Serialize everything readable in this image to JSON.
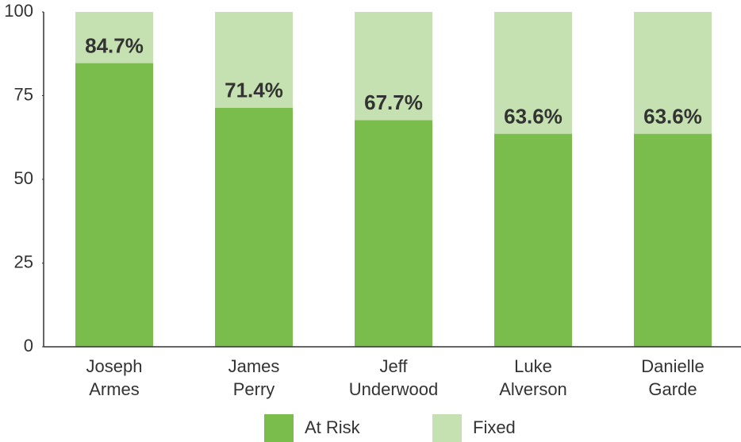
{
  "chart_data": {
    "type": "stacked_bar",
    "categories": [
      "Joseph Armes",
      "James Perry",
      "Jeff Underwood",
      "Luke Alverson",
      "Danielle Garde"
    ],
    "series": [
      {
        "name": "At Risk",
        "color": "#7bbd4c",
        "values": [
          84.7,
          71.4,
          67.7,
          63.6,
          63.6
        ],
        "value_labels": [
          "84.7%",
          "71.4%",
          "67.7%",
          "63.6%",
          "63.6%"
        ]
      },
      {
        "name": "Fixed",
        "color": "#c6e1b1",
        "values": [
          15.3,
          28.6,
          32.3,
          36.4,
          36.4
        ]
      }
    ],
    "ylim": [
      0,
      100
    ],
    "yticks": [
      0,
      25,
      50,
      75,
      100
    ],
    "grid": false,
    "legend": "bottom"
  }
}
